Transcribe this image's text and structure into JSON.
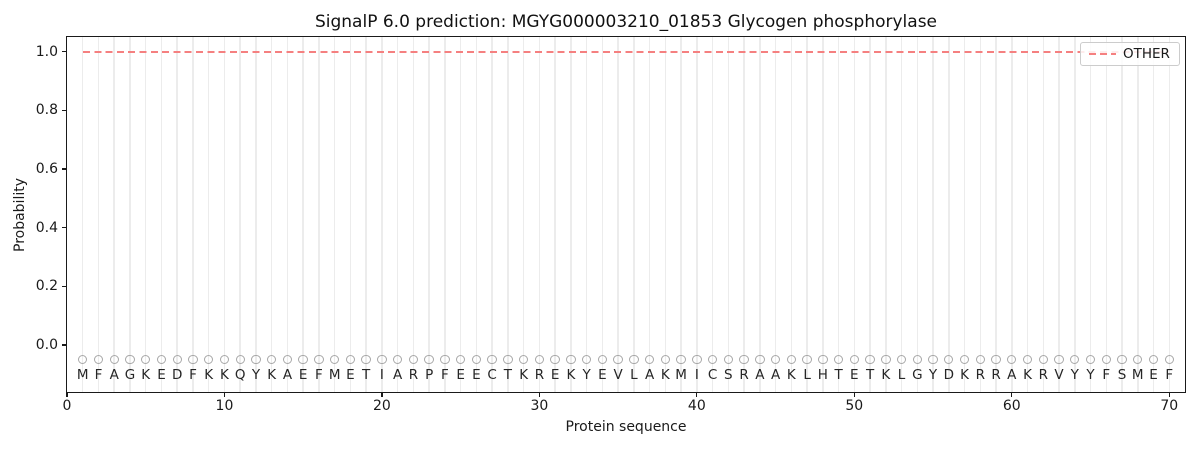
{
  "chart_data": {
    "type": "line",
    "title": "SignalP 6.0 prediction: MGYG000003210_01853 Glycogen phosphorylase",
    "xlabel": "Protein sequence",
    "ylabel": "Probability",
    "xlim": [
      0,
      71
    ],
    "ylim": [
      -0.16,
      1.05
    ],
    "x_ticks": [
      0,
      10,
      20,
      30,
      40,
      50,
      60,
      70
    ],
    "y_ticks": [
      0.0,
      0.2,
      0.4,
      0.6,
      0.8,
      1.0
    ],
    "grid": "vertical line at every residue position, light gray",
    "legend_position": "upper right",
    "sequence": "MFAGKEDFKKQYKAEFMETIARPFEECTKREKYEVLAKMICSRAAKLHTETKLGYDKRRAKRVYYFSMEF",
    "sequence_length": 70,
    "series": [
      {
        "name": "OTHER",
        "line_style": "dashed",
        "color": "#f58080",
        "x_range": [
          1,
          70
        ],
        "constant_value": 1.0
      }
    ],
    "markers": {
      "shape": "open-circle",
      "color": "#a8a8a8",
      "y_value": -0.05,
      "per_residue": true
    },
    "residue_label_y_value": -0.105
  }
}
